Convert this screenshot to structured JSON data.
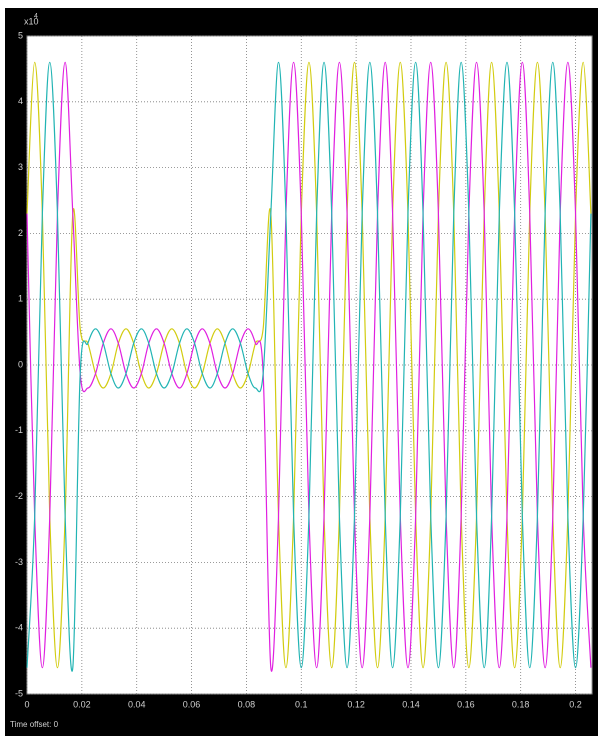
{
  "chart_data": {
    "type": "line",
    "y_multiplier": {
      "base": "x10",
      "power": "4"
    },
    "footer": "Time offset: 0",
    "x": [
      0,
      0.0028,
      0.0056,
      0.0083,
      0.0111,
      0.0139,
      0.0167,
      0.0194,
      0.0222,
      0.025,
      0.0278,
      0.0306,
      0.0333,
      0.0361,
      0.0389,
      0.0417,
      0.0444,
      0.0472,
      0.05,
      0.0528,
      0.0556,
      0.0583,
      0.0611,
      0.0639,
      0.0667,
      0.0694,
      0.0722,
      0.075,
      0.0778,
      0.0806,
      0.0833,
      0.0861,
      0.0889,
      0.0917,
      0.0944,
      0.0972,
      0.1,
      0.1028,
      0.1056,
      0.1083,
      0.1111,
      0.1139,
      0.1167,
      0.1194,
      0.1222,
      0.125,
      0.1278,
      0.1306,
      0.1333,
      0.1361,
      0.1389,
      0.1417,
      0.1444,
      0.1472,
      0.15,
      0.1528,
      0.1556,
      0.1583,
      0.1611,
      0.1639,
      0.1667,
      0.1694,
      0.1722,
      0.175,
      0.1778,
      0.1806,
      0.1833,
      0.1861,
      0.1889,
      0.1917,
      0.1944,
      0.1972,
      0.2,
      0.2028,
      0.2056
    ],
    "series": [
      {
        "color": "#d2cc10",
        "values": [
          2.3,
          4.6,
          2.3,
          -2.3,
          -4.6,
          -2.3,
          2.3,
          0.55,
          0.33,
          -0.13,
          -0.35,
          -0.13,
          0.33,
          0.55,
          0.33,
          -0.13,
          -0.35,
          -0.13,
          0.33,
          0.55,
          0.33,
          -0.13,
          -0.35,
          -0.13,
          0.33,
          0.55,
          0.33,
          -0.13,
          -0.35,
          -0.13,
          0.33,
          0.55,
          2.3,
          -2.3,
          -4.6,
          -2.3,
          2.3,
          4.6,
          2.3,
          -2.3,
          -4.6,
          -2.3,
          2.3,
          4.6,
          2.3,
          -2.3,
          -4.6,
          -2.3,
          2.3,
          4.6,
          2.3,
          -2.3,
          -4.6,
          -2.3,
          2.3,
          4.6,
          2.3,
          -2.3,
          -4.6,
          -2.3,
          2.3,
          4.6,
          2.3,
          -2.3,
          -4.6,
          -2.3,
          2.3,
          4.6,
          2.3,
          -2.3,
          -4.6,
          -2.3,
          2.3,
          4.6,
          2.3
        ]
      },
      {
        "color": "#e020e0",
        "values": [
          2.3,
          -2.3,
          -4.6,
          -2.3,
          2.3,
          4.6,
          2.3,
          -0.13,
          -0.35,
          -0.13,
          0.33,
          0.55,
          0.33,
          -0.13,
          -0.35,
          -0.13,
          0.33,
          0.55,
          0.33,
          -0.13,
          -0.35,
          -0.13,
          0.33,
          0.55,
          0.33,
          -0.13,
          -0.35,
          -0.13,
          0.33,
          0.55,
          0.33,
          -0.13,
          -4.6,
          -2.3,
          2.3,
          4.6,
          2.3,
          -2.3,
          -4.6,
          -2.3,
          2.3,
          4.6,
          2.3,
          -2.3,
          -4.6,
          -2.3,
          2.3,
          4.6,
          2.3,
          -2.3,
          -4.6,
          -2.3,
          2.3,
          4.6,
          2.3,
          -2.3,
          -4.6,
          -2.3,
          2.3,
          4.6,
          2.3,
          -2.3,
          -4.6,
          -2.3,
          2.3,
          4.6,
          2.3,
          -2.3,
          -4.6,
          -2.3,
          2.3,
          4.6,
          2.3,
          -2.3,
          -4.6
        ]
      },
      {
        "color": "#22b4b4",
        "values": [
          -4.6,
          -2.3,
          2.3,
          4.6,
          2.3,
          -2.3,
          -4.6,
          -0.13,
          0.33,
          0.55,
          0.33,
          -0.13,
          -0.35,
          -0.13,
          0.33,
          0.55,
          0.33,
          -0.13,
          -0.35,
          -0.13,
          0.33,
          0.55,
          0.33,
          -0.13,
          -0.35,
          -0.13,
          0.33,
          0.55,
          0.33,
          -0.13,
          -0.35,
          -0.13,
          2.3,
          4.6,
          2.3,
          -2.3,
          -4.6,
          -2.3,
          2.3,
          4.6,
          2.3,
          -2.3,
          -4.6,
          -2.3,
          2.3,
          4.6,
          2.3,
          -2.3,
          -4.6,
          -2.3,
          2.3,
          4.6,
          2.3,
          -2.3,
          -4.6,
          -2.3,
          2.3,
          4.6,
          2.3,
          -2.3,
          -4.6,
          -2.3,
          2.3,
          4.6,
          2.3,
          -2.3,
          -4.6,
          -2.3,
          2.3,
          4.6,
          2.3,
          -2.3,
          -4.6,
          -2.3,
          2.3
        ]
      }
    ],
    "xlim": [
      0,
      0.206
    ],
    "xticks": [
      0,
      0.02,
      0.04,
      0.06,
      0.08,
      0.1,
      0.12,
      0.14,
      0.16,
      0.18,
      0.2
    ],
    "ylim": [
      -5,
      5
    ],
    "yticks": [
      -5,
      -4,
      -3,
      -2,
      -1,
      0,
      1,
      2,
      3,
      4,
      5
    ],
    "grid": true
  }
}
